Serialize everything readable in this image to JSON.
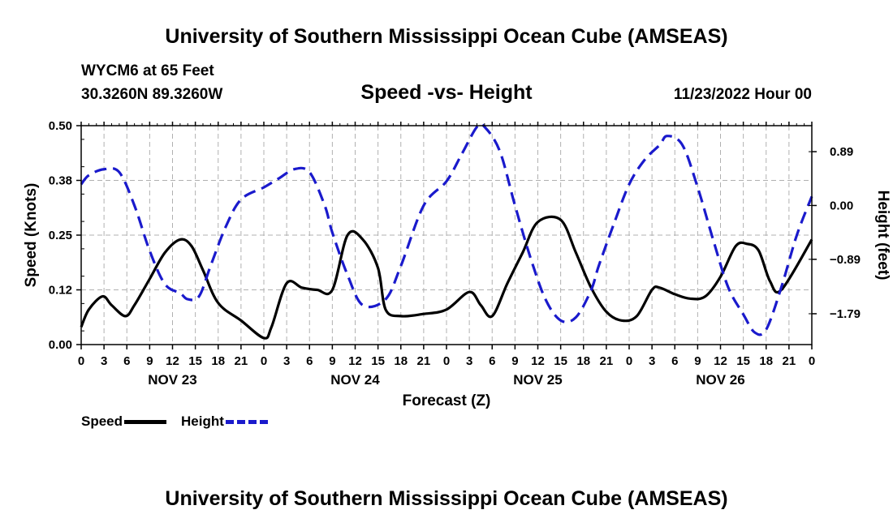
{
  "header": {
    "title": "University of Southern Mississippi Ocean Cube (AMSEAS)",
    "station": "WYCM6 at 65 Feet",
    "coords": "30.3260N  89.3260W",
    "subtitle": "Speed -vs- Height",
    "datetime": "11/23/2022 Hour 00"
  },
  "footer": {
    "title": "University of Southern Mississippi Ocean Cube (AMSEAS)"
  },
  "legend": {
    "speed_label": "Speed",
    "height_label": "Height"
  },
  "colors": {
    "speed": "#000000",
    "height": "#1a1acc",
    "grid": "#b0b0b0"
  },
  "chart_data": {
    "type": "line",
    "xlabel": "Forecast (Z)",
    "ylabel": "Speed (Knots)",
    "y2label": "Height (feet)",
    "xlim": [
      0,
      96
    ],
    "ylim": [
      0,
      0.5
    ],
    "y2lim": [
      -2.3,
      1.32
    ],
    "x_tick_labels": [
      "0",
      "3",
      "6",
      "9",
      "12",
      "15",
      "18",
      "21",
      "0",
      "3",
      "6",
      "9",
      "12",
      "15",
      "18",
      "21",
      "0",
      "3",
      "6",
      "9",
      "12",
      "15",
      "18",
      "21",
      "0",
      "3",
      "6",
      "9",
      "12",
      "15",
      "18",
      "21",
      "0"
    ],
    "day_labels": [
      {
        "hour": 12,
        "label": "NOV 23"
      },
      {
        "hour": 36,
        "label": "NOV 24"
      },
      {
        "hour": 60,
        "label": "NOV 25"
      },
      {
        "hour": 84,
        "label": "NOV 26"
      }
    ],
    "y_ticks": [
      "0.00",
      "0.12",
      "0.25",
      "0.38",
      "0.50"
    ],
    "y2_ticks": [
      "0.89",
      "0.00",
      "−0.89",
      "−1.79"
    ],
    "y2_tick_values": [
      0.89,
      0.0,
      -0.89,
      -1.79
    ],
    "series": [
      {
        "name": "Speed",
        "axis": "left",
        "x": [
          0,
          1,
          2.8,
          4,
          5.8,
          7,
          9,
          11,
          13,
          14.5,
          16,
          18,
          21,
          24,
          25,
          27,
          29,
          31,
          33,
          35,
          37,
          39,
          40,
          42,
          45,
          48,
          51,
          52.5,
          54,
          56,
          58,
          60,
          63,
          65,
          67,
          69,
          71,
          73,
          75,
          76,
          78,
          80,
          82,
          84,
          86,
          87.5,
          89,
          90.5,
          92,
          96
        ],
        "y": [
          0.04,
          0.08,
          0.11,
          0.09,
          0.065,
          0.09,
          0.15,
          0.21,
          0.24,
          0.225,
          0.17,
          0.095,
          0.055,
          0.015,
          0.04,
          0.14,
          0.13,
          0.125,
          0.125,
          0.25,
          0.24,
          0.175,
          0.08,
          0.065,
          0.07,
          0.08,
          0.12,
          0.09,
          0.065,
          0.14,
          0.21,
          0.28,
          0.285,
          0.21,
          0.13,
          0.075,
          0.055,
          0.065,
          0.125,
          0.13,
          0.115,
          0.105,
          0.11,
          0.155,
          0.225,
          0.23,
          0.215,
          0.145,
          0.125,
          0.24
        ]
      },
      {
        "name": "Height",
        "axis": "right",
        "x": [
          0,
          1,
          3,
          5,
          7,
          9,
          11,
          13,
          14,
          15.5,
          17,
          19,
          21,
          24,
          26,
          28,
          30,
          32,
          33,
          35,
          37,
          40,
          42,
          45,
          48,
          50,
          52,
          53,
          55,
          57,
          59,
          61,
          63,
          65,
          67,
          68,
          70,
          72,
          74,
          76,
          77,
          79,
          81,
          83,
          85,
          87,
          88.5,
          90,
          92,
          94,
          96
        ],
        "y": [
          0.35,
          0.5,
          0.6,
          0.55,
          0.0,
          -0.75,
          -1.3,
          -1.45,
          -1.55,
          -1.5,
          -1.0,
          -0.35,
          0.1,
          0.3,
          0.45,
          0.6,
          0.55,
          0.0,
          -0.45,
          -1.15,
          -1.65,
          -1.55,
          -1.0,
          0.0,
          0.4,
          0.85,
          1.3,
          1.3,
          0.9,
          0.0,
          -0.85,
          -1.55,
          -1.9,
          -1.85,
          -1.4,
          -1.0,
          -0.3,
          0.35,
          0.75,
          1.0,
          1.15,
          1.0,
          0.3,
          -0.55,
          -1.35,
          -1.8,
          -2.1,
          -2.05,
          -1.35,
          -0.5,
          0.15
        ]
      }
    ]
  }
}
